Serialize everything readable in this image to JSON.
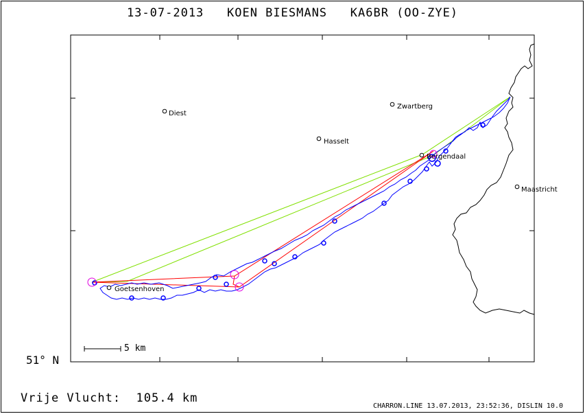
{
  "title": "13-07-2013   KOEN BIESMANS   KA6BR (OO-ZYE)",
  "latitude_label": "51° N",
  "scale_label": "5 km",
  "distance_label": "Vrije Vlucht:  105.4 km",
  "footer": "CHARRON.LINE 13.07.2013, 23:52:36, DISLIN 10.0",
  "towns": {
    "diest": "Diest",
    "zwartberg": "Zwartberg",
    "hasselt": "Hasselt",
    "genk": "Bergendaal",
    "maastricht": "Maastricht",
    "goetsenhoven": "Goetsenhoven"
  },
  "colors": {
    "track": "#0000ff",
    "task_red": "#ff0000",
    "task_green": "#80e000",
    "turnpoint": "#e000e0",
    "border": "#000000"
  }
}
